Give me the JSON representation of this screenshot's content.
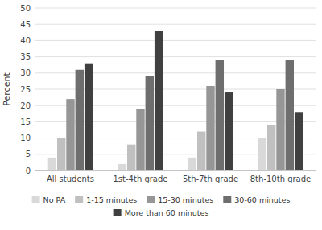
{
  "chart_data": {
    "type": "bar",
    "categories": [
      "All students",
      "1st-4th grade",
      "5th-7th grade",
      "8th-10th grade"
    ],
    "series": [
      {
        "name": "No PA",
        "color": "#d9d9d9",
        "values": [
          4,
          2,
          4,
          10
        ]
      },
      {
        "name": "1-15 minutes",
        "color": "#c0c0c0",
        "values": [
          10,
          8,
          12,
          14
        ]
      },
      {
        "name": "15-30 minutes",
        "color": "#969696",
        "values": [
          22,
          19,
          26,
          25
        ]
      },
      {
        "name": "30-60 minutes",
        "color": "#6e6e6e",
        "values": [
          31,
          29,
          34,
          34
        ]
      },
      {
        "name": "More than 60 minutes",
        "color": "#404040",
        "values": [
          33,
          43,
          24,
          18
        ]
      }
    ],
    "y_label": "Percent",
    "ylim": [
      0,
      50
    ],
    "yticks": [
      0,
      5,
      10,
      15,
      20,
      25,
      30,
      35,
      40,
      45,
      50
    ],
    "grid": true,
    "legend": "bottom"
  }
}
